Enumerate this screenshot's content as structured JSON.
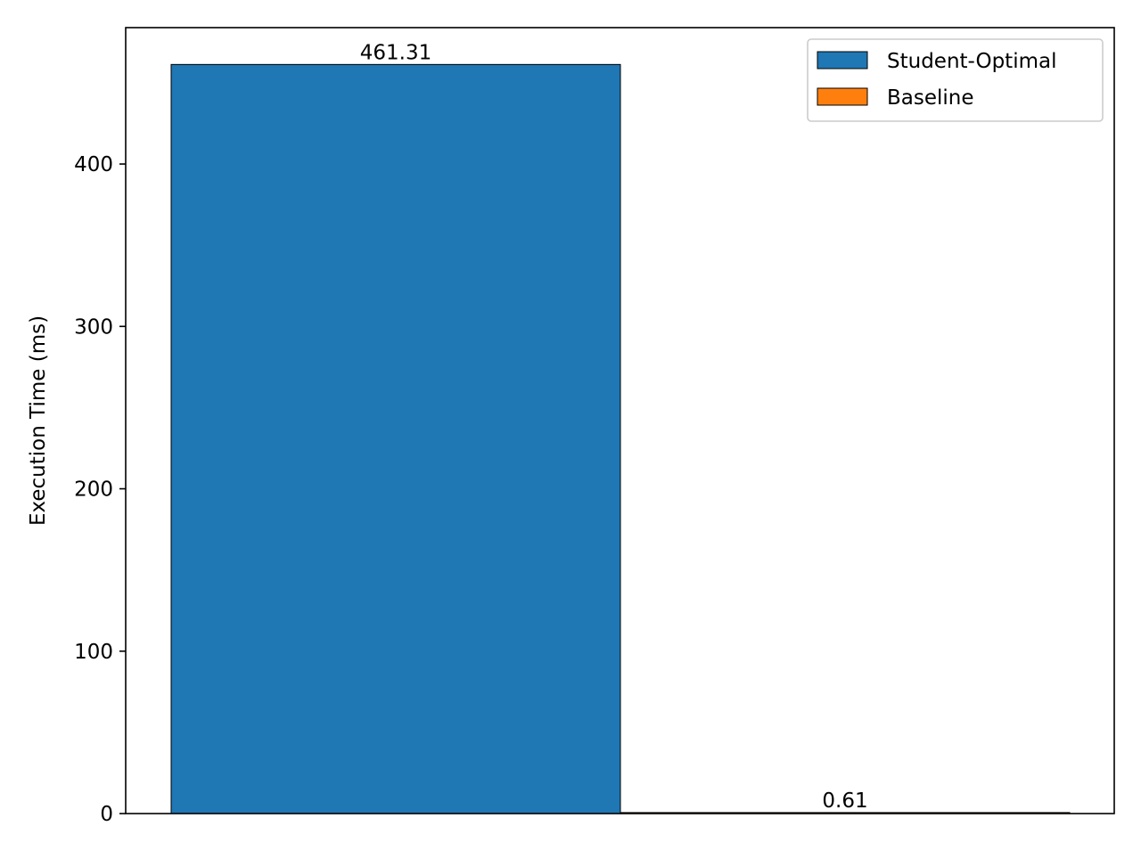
{
  "chart_data": {
    "type": "bar",
    "title": "",
    "xlabel": "",
    "ylabel": "Execution Time (ms)",
    "ylim": [
      0,
      484
    ],
    "yticks": [
      0,
      100,
      200,
      300,
      400
    ],
    "grid": false,
    "legend_position": "top-right",
    "series": [
      {
        "name": "Student-Optimal",
        "value": 461.31,
        "label": "461.31",
        "color": "#1f77b4"
      },
      {
        "name": "Baseline",
        "value": 0.61,
        "label": "0.61",
        "color": "#ff7f0e"
      }
    ]
  }
}
